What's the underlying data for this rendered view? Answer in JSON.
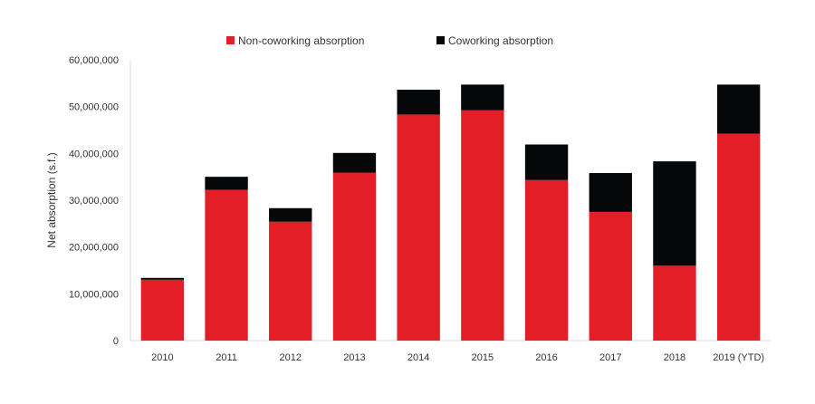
{
  "chart_data": {
    "type": "bar",
    "stacked": true,
    "title": "",
    "xlabel": "",
    "ylabel": "Net absorption (s.f.)",
    "ylim": [
      0,
      60000000
    ],
    "yticks": [
      "0",
      "10,000,000",
      "20,000,000",
      "30,000,000",
      "40,000,000",
      "50,000,000",
      "60,000,000"
    ],
    "grid": false,
    "legend_position": "top-center",
    "categories": [
      "2010",
      "2011",
      "2012",
      "2013",
      "2014",
      "2015",
      "2016",
      "2017",
      "2018",
      "2019 (YTD)"
    ],
    "series": [
      {
        "name": "Non-coworking absorption",
        "color": "#e31e26",
        "values": [
          13000000,
          32200000,
          25400000,
          35900000,
          48300000,
          49200000,
          34300000,
          27500000,
          16000000,
          44200000
        ]
      },
      {
        "name": "Coworking absorption",
        "color": "#050708",
        "values": [
          400000,
          2800000,
          2900000,
          4200000,
          5300000,
          5500000,
          7600000,
          8300000,
          22300000,
          10500000
        ]
      }
    ]
  }
}
